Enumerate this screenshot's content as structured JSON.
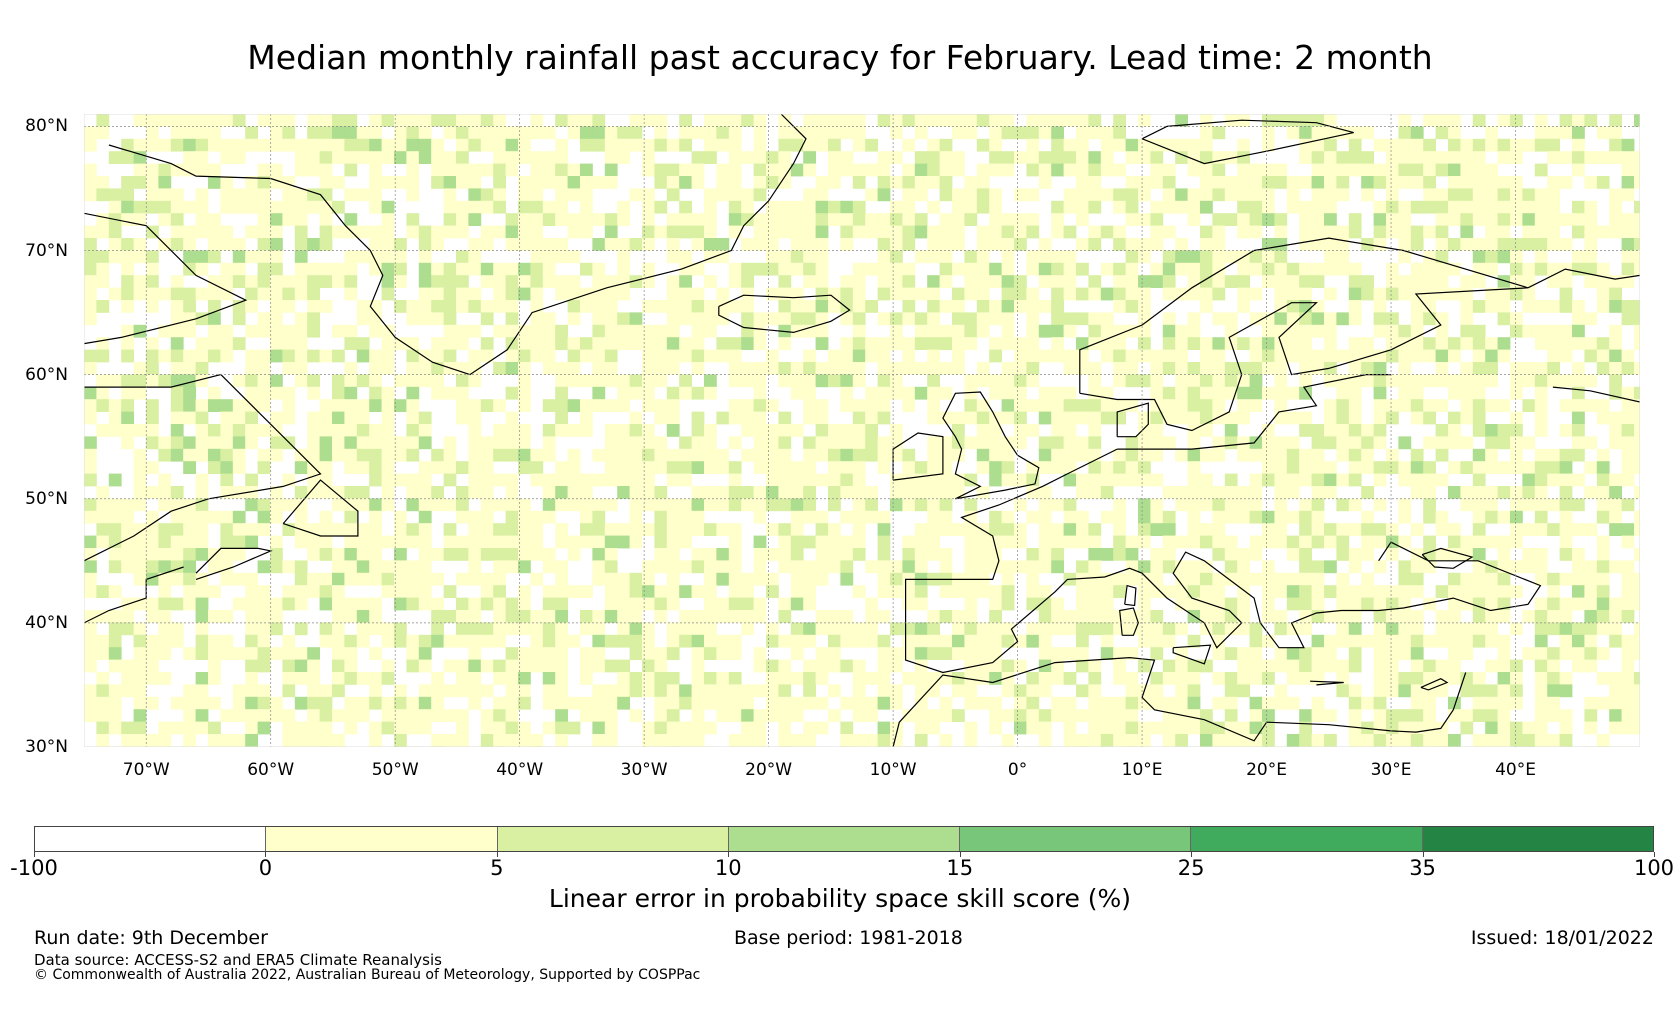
{
  "title": "Median monthly rainfall past accuracy for February. Lead time: 2 month",
  "map": {
    "lat_labels": [
      "80°N",
      "70°N",
      "60°N",
      "50°N",
      "40°N",
      "30°N"
    ],
    "lon_labels": [
      "70°W",
      "60°W",
      "50°W",
      "40°W",
      "30°W",
      "20°W",
      "10°W",
      "0°",
      "10°E",
      "20°E",
      "30°E",
      "40°E"
    ],
    "lat_values": [
      80,
      70,
      60,
      50,
      40,
      30
    ],
    "lon_values": [
      -70,
      -60,
      -50,
      -40,
      -30,
      -20,
      -10,
      0,
      10,
      20,
      30,
      40
    ],
    "extent": {
      "lon_min": -75,
      "lon_max": 50,
      "lat_min": 30,
      "lat_max": 81
    },
    "coastline_color": "#000000",
    "grid_color": "#888888"
  },
  "colorbar": {
    "ticks": [
      "-100",
      "0",
      "5",
      "10",
      "15",
      "25",
      "35",
      "100"
    ],
    "colors": [
      "#ffffff",
      "#ffffcc",
      "#d9f0a3",
      "#addd8e",
      "#78c679",
      "#41ab5d",
      "#238443"
    ],
    "label": "Linear error in probability space skill score (%)"
  },
  "footer": {
    "run_date": "Run date: 9th December",
    "base_period": "Base period: 1981-2018",
    "issued": "Issued: 18/01/2022",
    "source": "Data source: ACCESS-S2 and ERA5 Climate Reanalysis",
    "copyright": "© Commonwealth of Australia 2022, Australian Bureau of Meteorology, Supported by COSPPac"
  }
}
